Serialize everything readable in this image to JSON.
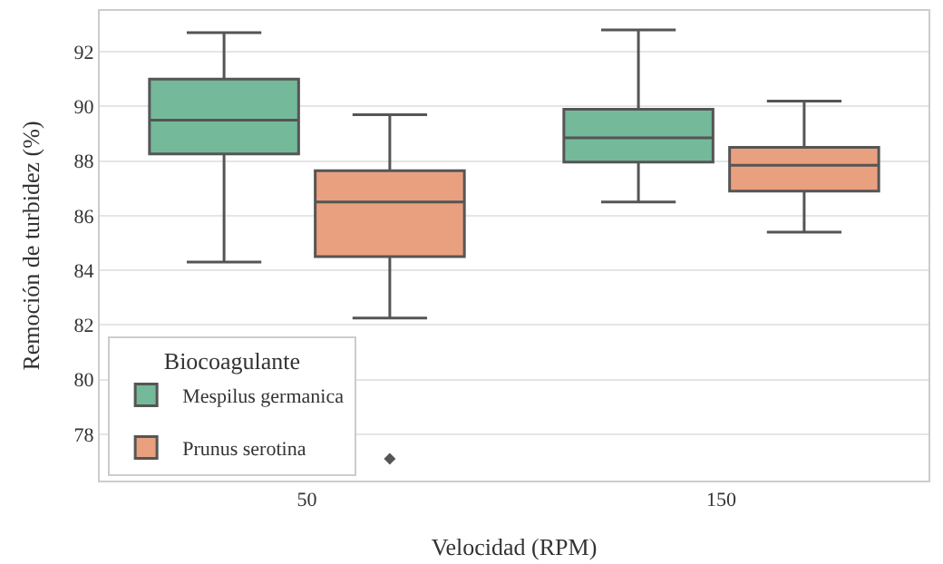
{
  "chart_data": {
    "type": "box",
    "xlabel": "Velocidad (RPM)",
    "ylabel": "Remoción de turbidez (%)",
    "legend_title": "Biocoagulante",
    "categories": [
      "50",
      "150"
    ],
    "ylim": [
      76.3,
      93.5
    ],
    "yticks": [
      78,
      80,
      82,
      84,
      86,
      88,
      90,
      92
    ],
    "grid": "y",
    "legend": "bottom left",
    "series": [
      {
        "name": "Mespilus germanica",
        "color": "#74b99a",
        "boxes": [
          {
            "low": 84.3,
            "q1": 88.26,
            "median": 89.5,
            "q3": 91.0,
            "high": 92.7
          },
          {
            "low": 86.5,
            "q1": 87.96,
            "median": 88.85,
            "q3": 89.9,
            "high": 92.8
          }
        ]
      },
      {
        "name": "Prunus serotina",
        "color": "#e9a07f",
        "boxes": [
          {
            "low": 82.25,
            "q1": 84.5,
            "median": 86.5,
            "q3": 87.65,
            "high": 89.7,
            "outliers": [
              77.1
            ]
          },
          {
            "low": 85.4,
            "q1": 86.9,
            "median": 87.85,
            "q3": 88.5,
            "high": 90.2
          }
        ]
      }
    ]
  }
}
